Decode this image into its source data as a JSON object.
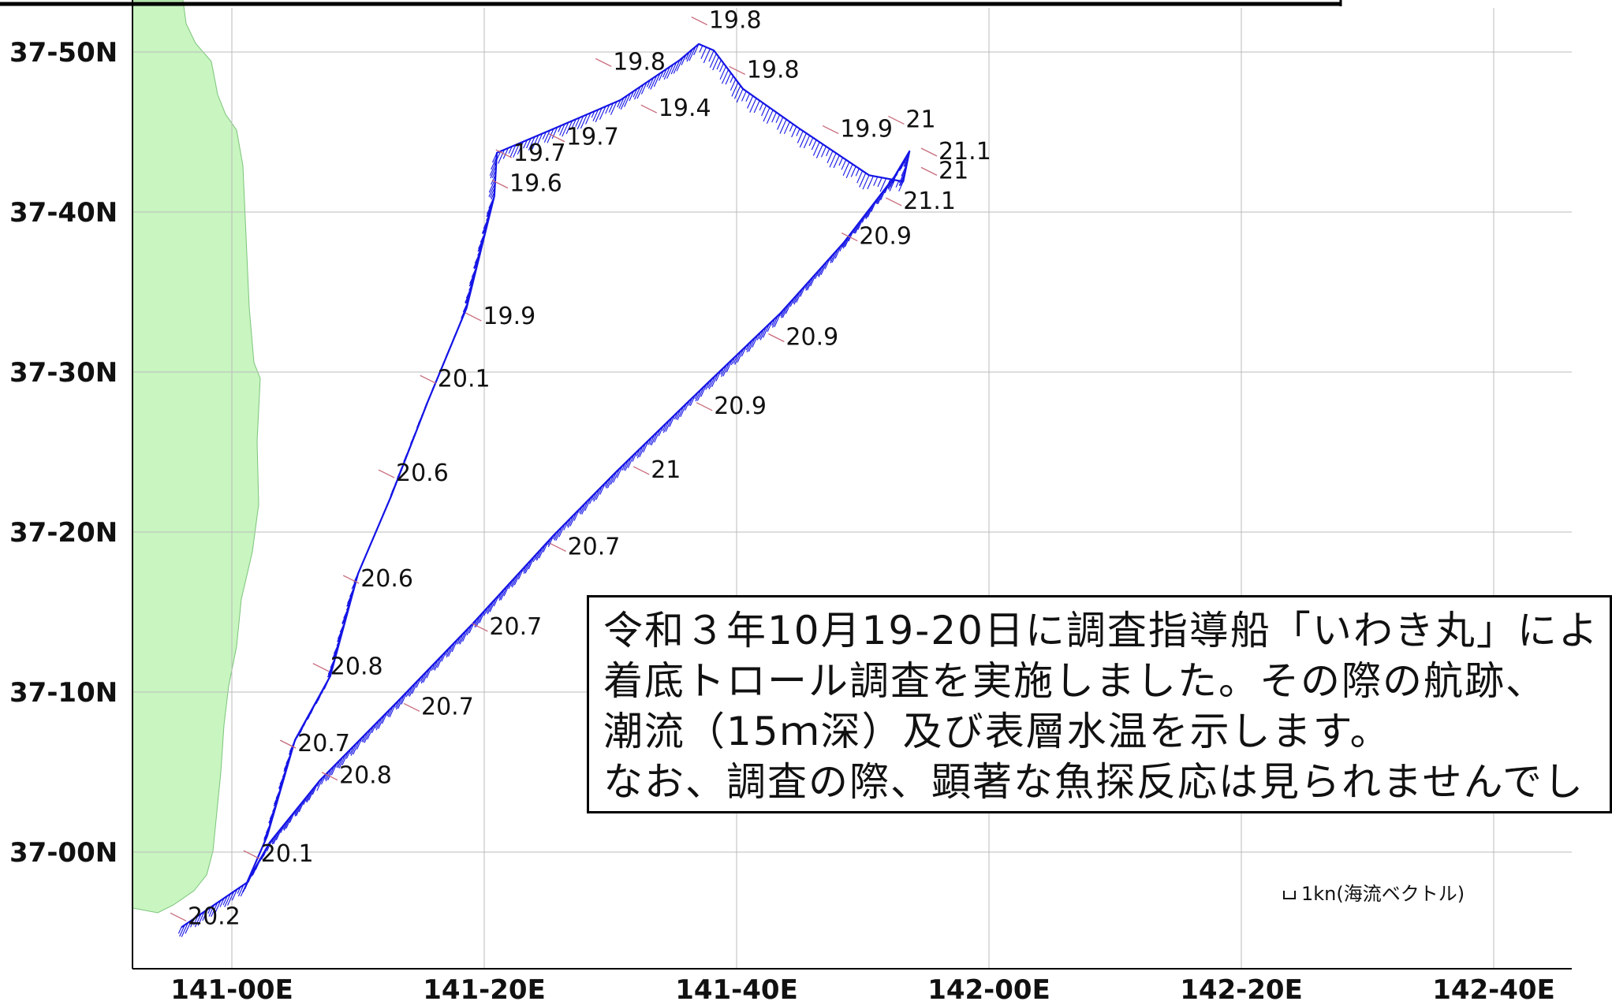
{
  "map": {
    "lat_labels": [
      {
        "text": "37-50N",
        "lat_min": 50
      },
      {
        "text": "37-40N",
        "lat_min": 40
      },
      {
        "text": "37-30N",
        "lat_min": 30
      },
      {
        "text": "37-20N",
        "lat_min": 20
      },
      {
        "text": "37-10N",
        "lat_min": 10
      },
      {
        "text": "37-00N",
        "lat_min": 0
      }
    ],
    "lon_labels": [
      {
        "text": "141-00E",
        "lon_min": 0
      },
      {
        "text": "141-20E",
        "lon_min": 20
      },
      {
        "text": "141-40E",
        "lon_min": 40
      },
      {
        "text": "142-00E",
        "lon_min": 60
      },
      {
        "text": "142-20E",
        "lon_min": 80
      },
      {
        "text": "142-40E",
        "lon_min": 100
      }
    ],
    "colors": {
      "land": "#c8f5c0",
      "track": "#1414e6",
      "grid": "#bbbbbb",
      "wind_tick": "#c86a7a"
    }
  },
  "track": {
    "points": [
      {
        "lon_min": -4.0,
        "lat_min": -4.7
      },
      {
        "lon_min": 1.2,
        "lat_min": -1.9
      },
      {
        "lon_min": 2.8,
        "lat_min": 1.0
      },
      {
        "lon_min": 5.0,
        "lat_min": 7.0
      },
      {
        "lon_min": 7.8,
        "lat_min": 11.0
      },
      {
        "lon_min": 10.0,
        "lat_min": 17.4
      },
      {
        "lon_min": 12.6,
        "lat_min": 22.2
      },
      {
        "lon_min": 15.5,
        "lat_min": 28.1
      },
      {
        "lon_min": 18.6,
        "lat_min": 34.0
      },
      {
        "lon_min": 20.8,
        "lat_min": 41.0
      },
      {
        "lon_min": 21.0,
        "lat_min": 43.7
      },
      {
        "lon_min": 25.5,
        "lat_min": 45.2
      },
      {
        "lon_min": 30.8,
        "lat_min": 47.0
      },
      {
        "lon_min": 35.5,
        "lat_min": 49.5
      },
      {
        "lon_min": 37.0,
        "lat_min": 50.5
      },
      {
        "lon_min": 38.2,
        "lat_min": 50.1
      },
      {
        "lon_min": 40.5,
        "lat_min": 47.7
      },
      {
        "lon_min": 45.0,
        "lat_min": 45.2
      },
      {
        "lon_min": 50.5,
        "lat_min": 42.3
      },
      {
        "lon_min": 53.2,
        "lat_min": 41.9
      },
      {
        "lon_min": 53.7,
        "lat_min": 43.8
      },
      {
        "lon_min": 52.5,
        "lat_min": 42.2
      },
      {
        "lon_min": 48.5,
        "lat_min": 38.1
      },
      {
        "lon_min": 43.5,
        "lat_min": 33.7
      },
      {
        "lon_min": 36.5,
        "lat_min": 28.4
      },
      {
        "lon_min": 30.5,
        "lat_min": 23.8
      },
      {
        "lon_min": 25.5,
        "lat_min": 19.8
      },
      {
        "lon_min": 19.0,
        "lat_min": 14.2
      },
      {
        "lon_min": 13.0,
        "lat_min": 9.3
      },
      {
        "lon_min": 7.0,
        "lat_min": 4.5
      },
      {
        "lon_min": 3.0,
        "lat_min": 0.6
      },
      {
        "lon_min": 1.2,
        "lat_min": -1.9
      }
    ]
  },
  "temperatures": [
    {
      "text": "19.8",
      "lon_min": 37.8,
      "lat_min": 51.5
    },
    {
      "text": "19.8",
      "lon_min": 30.2,
      "lat_min": 48.9
    },
    {
      "text": "19.8",
      "lon_min": 40.8,
      "lat_min": 48.4
    },
    {
      "text": "19.4",
      "lon_min": 33.8,
      "lat_min": 46.0
    },
    {
      "text": "19.7",
      "lon_min": 26.5,
      "lat_min": 44.2
    },
    {
      "text": "19.7",
      "lon_min": 22.3,
      "lat_min": 43.2
    },
    {
      "text": "19.6",
      "lon_min": 22.0,
      "lat_min": 41.3
    },
    {
      "text": "19.9",
      "lon_min": 48.2,
      "lat_min": 44.7
    },
    {
      "text": "21",
      "lon_min": 53.4,
      "lat_min": 45.3
    },
    {
      "text": "21.1",
      "lon_min": 56.0,
      "lat_min": 43.3
    },
    {
      "text": "21",
      "lon_min": 56.0,
      "lat_min": 42.1
    },
    {
      "text": "21.1",
      "lon_min": 53.2,
      "lat_min": 40.2
    },
    {
      "text": "20.9",
      "lon_min": 49.7,
      "lat_min": 38.0
    },
    {
      "text": "19.9",
      "lon_min": 19.9,
      "lat_min": 33.0
    },
    {
      "text": "20.9",
      "lon_min": 43.9,
      "lat_min": 31.7
    },
    {
      "text": "20.1",
      "lon_min": 16.3,
      "lat_min": 29.1
    },
    {
      "text": "20.9",
      "lon_min": 38.2,
      "lat_min": 27.4
    },
    {
      "text": "20.6",
      "lon_min": 13.0,
      "lat_min": 23.2
    },
    {
      "text": "21",
      "lon_min": 33.2,
      "lat_min": 23.4
    },
    {
      "text": "20.7",
      "lon_min": 26.6,
      "lat_min": 18.6
    },
    {
      "text": "20.6",
      "lon_min": 10.2,
      "lat_min": 16.6
    },
    {
      "text": "20.7",
      "lon_min": 20.4,
      "lat_min": 13.6
    },
    {
      "text": "20.8",
      "lon_min": 7.8,
      "lat_min": 11.1
    },
    {
      "text": "20.7",
      "lon_min": 15.0,
      "lat_min": 8.6
    },
    {
      "text": "20.7",
      "lon_min": 5.2,
      "lat_min": 6.3
    },
    {
      "text": "20.8",
      "lon_min": 8.5,
      "lat_min": 4.3
    },
    {
      "text": "20.1",
      "lon_min": 2.3,
      "lat_min": -0.6
    },
    {
      "text": "20.2",
      "lon_min": -3.5,
      "lat_min": -4.5
    }
  ],
  "note": {
    "lines": [
      "令和３年10月19-20日に調査指導船「いわき丸」によ",
      "着底トロール調査を実施しました。その際の航跡、",
      "潮流（15ｍ深）及び表層水温を示します。",
      "なお、調査の際、顕著な魚探反応は見られませんでし"
    ]
  },
  "legend": {
    "label": "1kn(海流ベクトル)"
  }
}
